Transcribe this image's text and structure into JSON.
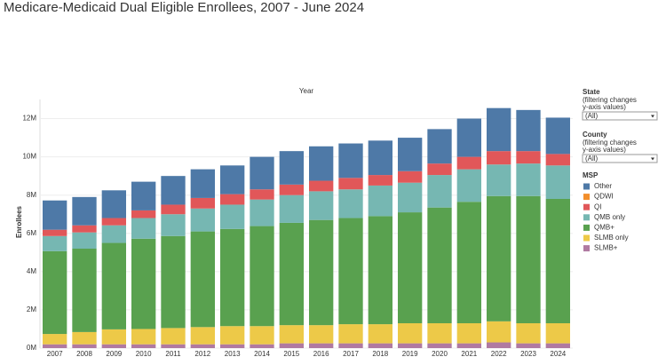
{
  "chart_data": {
    "type": "stacked_bar",
    "title": "Medicare-Medicaid Dual Eligible Enrollees, 2007 - June 2024",
    "x_label": "Year",
    "y_label": "Enrollees",
    "categories": [
      "2007",
      "2008",
      "2009",
      "2010",
      "2011",
      "2012",
      "2013",
      "2014",
      "2015",
      "2016",
      "2017",
      "2018",
      "2019",
      "2020",
      "2021",
      "2022",
      "2023",
      "2024"
    ],
    "ylim": [
      0,
      13000000
    ],
    "yticks": [
      {
        "value": 0,
        "label": "0M"
      },
      {
        "value": 2000000,
        "label": "2M"
      },
      {
        "value": 4000000,
        "label": "4M"
      },
      {
        "value": 6000000,
        "label": "6M"
      },
      {
        "value": 8000000,
        "label": "8M"
      },
      {
        "value": 10000000,
        "label": "10M"
      },
      {
        "value": 12000000,
        "label": "12M"
      }
    ],
    "grid": true,
    "legend_title": "MSP",
    "series": [
      {
        "name": "Other",
        "color": "#4e79a7",
        "values": [
          1530000,
          1480000,
          1450000,
          1500000,
          1500000,
          1500000,
          1500000,
          1700000,
          1750000,
          1800000,
          1800000,
          1800000,
          1750000,
          1800000,
          2000000,
          2250000,
          2150000,
          1900000
        ]
      },
      {
        "name": "QDWI",
        "color": "#f28e2b",
        "values": [
          0,
          0,
          0,
          0,
          0,
          0,
          0,
          0,
          0,
          0,
          0,
          0,
          0,
          0,
          0,
          0,
          0,
          0
        ]
      },
      {
        "name": "QI",
        "color": "#e15759",
        "values": [
          330000,
          370000,
          380000,
          400000,
          500000,
          550000,
          550000,
          530000,
          550000,
          550000,
          600000,
          550000,
          600000,
          600000,
          650000,
          700000,
          650000,
          600000
        ]
      },
      {
        "name": "QMB only",
        "color": "#76b7b2",
        "values": [
          790000,
          850000,
          920000,
          1080000,
          1140000,
          1200000,
          1270000,
          1390000,
          1450000,
          1500000,
          1500000,
          1600000,
          1550000,
          1700000,
          1700000,
          1650000,
          1700000,
          1750000
        ]
      },
      {
        "name": "QMB+",
        "color": "#59a14f",
        "values": [
          4330000,
          4360000,
          4520000,
          4720000,
          4810000,
          5000000,
          5080000,
          5230000,
          5350000,
          5500000,
          5550000,
          5650000,
          5800000,
          6050000,
          6350000,
          6550000,
          6650000,
          6500000
        ]
      },
      {
        "name": "SLMB only",
        "color": "#edc948",
        "values": [
          540000,
          640000,
          780000,
          800000,
          850000,
          900000,
          950000,
          950000,
          950000,
          950000,
          1000000,
          1000000,
          1050000,
          1050000,
          1050000,
          1100000,
          1050000,
          1050000
        ]
      },
      {
        "name": "SLMB+",
        "color": "#b07aa1",
        "values": [
          200000,
          200000,
          200000,
          200000,
          200000,
          200000,
          200000,
          200000,
          250000,
          250000,
          250000,
          250000,
          250000,
          250000,
          250000,
          300000,
          250000,
          250000
        ]
      }
    ],
    "filters": [
      {
        "label": "State",
        "note": [
          "(filtering changes",
          "y-axis values)"
        ],
        "value": "(All)"
      },
      {
        "label": "County",
        "note": [
          "(filtering changes",
          "y-axis values)"
        ],
        "value": "(All)"
      }
    ]
  }
}
